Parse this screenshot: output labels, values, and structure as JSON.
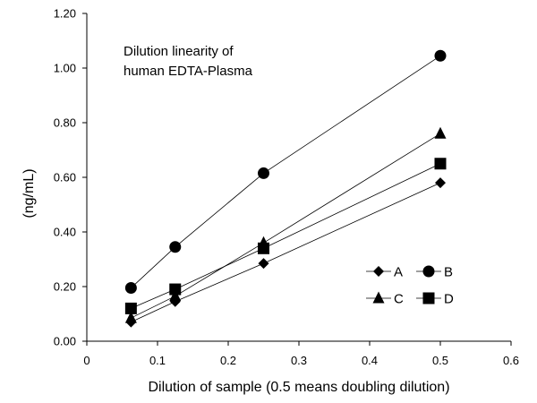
{
  "chart_data": {
    "type": "line",
    "title": "",
    "xlabel": "Dilution of sample (0.5 means doubling dilution)",
    "ylabel": "(ng/mL)",
    "xlim": [
      0,
      0.6
    ],
    "ylim": [
      0,
      1.2
    ],
    "x_ticks": [
      0,
      0.1,
      0.2,
      0.3,
      0.4,
      0.5,
      0.6
    ],
    "x_tick_labels": [
      "0",
      "0.1",
      "0.2",
      "0.3",
      "0.4",
      "0.5",
      "0.6"
    ],
    "y_ticks": [
      0,
      0.2,
      0.4,
      0.6,
      0.8,
      1.0,
      1.2
    ],
    "y_tick_labels": [
      "0.00",
      "0.20",
      "0.40",
      "0.60",
      "0.80",
      "1.00",
      "1.20"
    ],
    "x": [
      0.0625,
      0.125,
      0.25,
      0.5
    ],
    "series": [
      {
        "name": "A",
        "marker": "diamond",
        "values": [
          0.07,
          0.145,
          0.285,
          0.58
        ]
      },
      {
        "name": "B",
        "marker": "circle",
        "values": [
          0.195,
          0.345,
          0.615,
          1.045
        ]
      },
      {
        "name": "C",
        "marker": "triangle",
        "values": [
          0.085,
          0.165,
          0.36,
          0.76
        ]
      },
      {
        "name": "D",
        "marker": "square",
        "values": [
          0.12,
          0.19,
          0.34,
          0.65
        ]
      }
    ],
    "annotation": [
      "Dilution linearity of",
      "human EDTA-Plasma"
    ],
    "grid": false,
    "legend_position": "lower-right",
    "colors": {
      "line": "#000000",
      "marker": "#000000",
      "axis": "#000000"
    }
  }
}
